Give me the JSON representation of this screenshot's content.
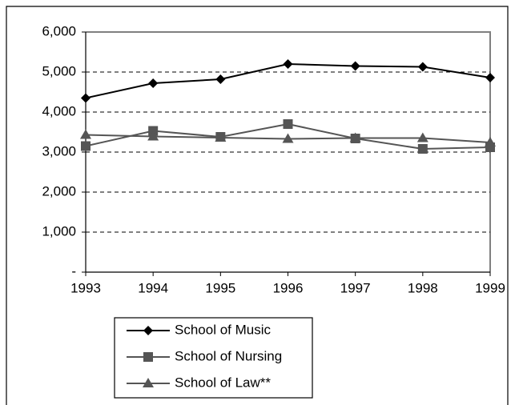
{
  "chart_data": {
    "type": "line",
    "categories": [
      "1993",
      "1994",
      "1995",
      "1996",
      "1997",
      "1998",
      "1999"
    ],
    "series": [
      {
        "name": "School of Music",
        "color": "#000000",
        "marker": "diamond",
        "values": [
          4350,
          4720,
          4820,
          5200,
          5150,
          5130,
          4860
        ]
      },
      {
        "name": "School of Nursing",
        "color": "#555555",
        "marker": "square",
        "values": [
          3150,
          3530,
          3380,
          3700,
          3340,
          3080,
          3120
        ]
      },
      {
        "name": "School of Law**",
        "color": "#555555",
        "marker": "triangle",
        "values": [
          3430,
          3390,
          3360,
          3330,
          3350,
          3350,
          3240
        ]
      }
    ],
    "ylim": [
      0,
      6000
    ],
    "yticks": [
      {
        "value": 0,
        "label": "-"
      },
      {
        "value": 1000,
        "label": "1,000"
      },
      {
        "value": 2000,
        "label": "2,000"
      },
      {
        "value": 3000,
        "label": "3,000"
      },
      {
        "value": 4000,
        "label": "4,000"
      },
      {
        "value": 5000,
        "label": "5,000"
      },
      {
        "value": 6000,
        "label": "6,000"
      }
    ],
    "grid": true
  }
}
